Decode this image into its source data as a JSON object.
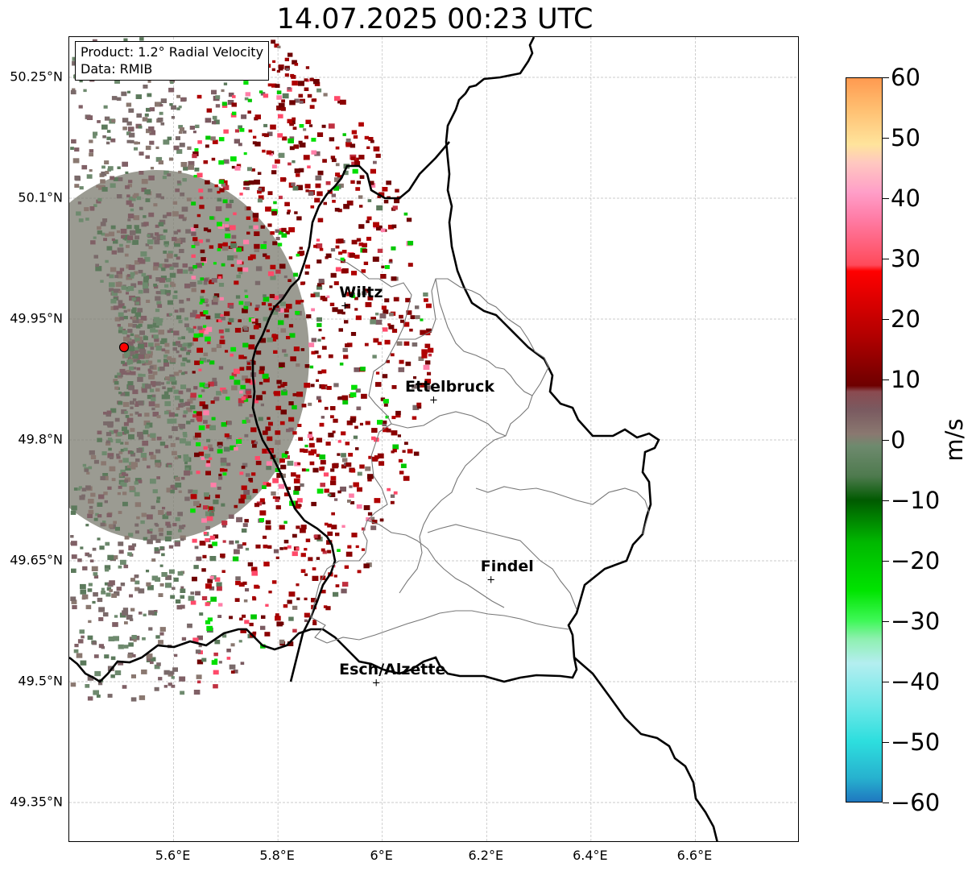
{
  "title": "14.07.2025 00:23 UTC",
  "info": {
    "product": "Product: 1.2° Radial Velocity",
    "data": "Data: RMIB"
  },
  "axes": {
    "lon_min": 5.4,
    "lon_max": 6.8,
    "lat_min": 49.3,
    "lat_max": 50.3,
    "lat_ticks": [
      {
        "value": 50.25,
        "label": "50.25°N"
      },
      {
        "value": 50.1,
        "label": "50.1°N"
      },
      {
        "value": 49.95,
        "label": "49.95°N"
      },
      {
        "value": 49.8,
        "label": "49.8°N"
      },
      {
        "value": 49.65,
        "label": "49.65°N"
      },
      {
        "value": 49.5,
        "label": "49.5°N"
      },
      {
        "value": 49.35,
        "label": "49.35°N"
      }
    ],
    "lon_ticks": [
      {
        "value": 5.6,
        "label": "5.6°E"
      },
      {
        "value": 5.8,
        "label": "5.8°E"
      },
      {
        "value": 6.0,
        "label": "6°E"
      },
      {
        "value": 6.2,
        "label": "6.2°E"
      },
      {
        "value": 6.4,
        "label": "6.4°E"
      },
      {
        "value": 6.6,
        "label": "6.6°E"
      }
    ],
    "gridlines": true
  },
  "radar_site": {
    "lon": 5.505,
    "lat": 49.915,
    "color": "#ff0000"
  },
  "cities": [
    {
      "name": "Wiltz",
      "lon": 5.93,
      "lat": 49.965
    },
    {
      "name": "Ettelbruck",
      "lon": 6.1,
      "lat": 49.848
    },
    {
      "name": "Findel",
      "lon": 6.21,
      "lat": 49.625
    },
    {
      "name": "Esch/Alzette",
      "lon": 5.99,
      "lat": 49.497
    }
  ],
  "colorbar": {
    "unit": "m/s",
    "min": -60,
    "max": 60,
    "ticks": [
      {
        "value": 60,
        "label": "60"
      },
      {
        "value": 50,
        "label": "50"
      },
      {
        "value": 40,
        "label": "40"
      },
      {
        "value": 30,
        "label": "30"
      },
      {
        "value": 20,
        "label": "20"
      },
      {
        "value": 10,
        "label": "10"
      },
      {
        "value": 0,
        "label": "0"
      },
      {
        "value": -10,
        "label": "−10"
      },
      {
        "value": -20,
        "label": "−20"
      },
      {
        "value": -30,
        "label": "−30"
      },
      {
        "value": -40,
        "label": "−40"
      },
      {
        "value": -50,
        "label": "−50"
      },
      {
        "value": -60,
        "label": "−60"
      }
    ],
    "stops": [
      {
        "value": -60,
        "color": "#1f78c0"
      },
      {
        "value": -56,
        "color": "#27b2cf"
      },
      {
        "value": -50,
        "color": "#2ddede"
      },
      {
        "value": -44,
        "color": "#6ee8e8"
      },
      {
        "value": -37,
        "color": "#b4eef0"
      },
      {
        "value": -33,
        "color": "#8ef0b0"
      },
      {
        "value": -30,
        "color": "#3ff858"
      },
      {
        "value": -25,
        "color": "#00e400"
      },
      {
        "value": -17,
        "color": "#00b800"
      },
      {
        "value": -10,
        "color": "#005a00"
      },
      {
        "value": -6,
        "color": "#4e7a4e"
      },
      {
        "value": -1,
        "color": "#6e8a6e"
      },
      {
        "value": 1,
        "color": "#8a7870"
      },
      {
        "value": 5,
        "color": "#7a5a60"
      },
      {
        "value": 8,
        "color": "#8a4a50"
      },
      {
        "value": 9,
        "color": "#6e0000"
      },
      {
        "value": 17,
        "color": "#b00000"
      },
      {
        "value": 28,
        "color": "#ff0000"
      },
      {
        "value": 29,
        "color": "#ff4a5a"
      },
      {
        "value": 37,
        "color": "#ff7ea8"
      },
      {
        "value": 41,
        "color": "#ff9ec8"
      },
      {
        "value": 46,
        "color": "#ffc8c0"
      },
      {
        "value": 49,
        "color": "#ffe49c"
      },
      {
        "value": 55,
        "color": "#ffbe70"
      },
      {
        "value": 60,
        "color": "#ff9a50"
      }
    ]
  }
}
